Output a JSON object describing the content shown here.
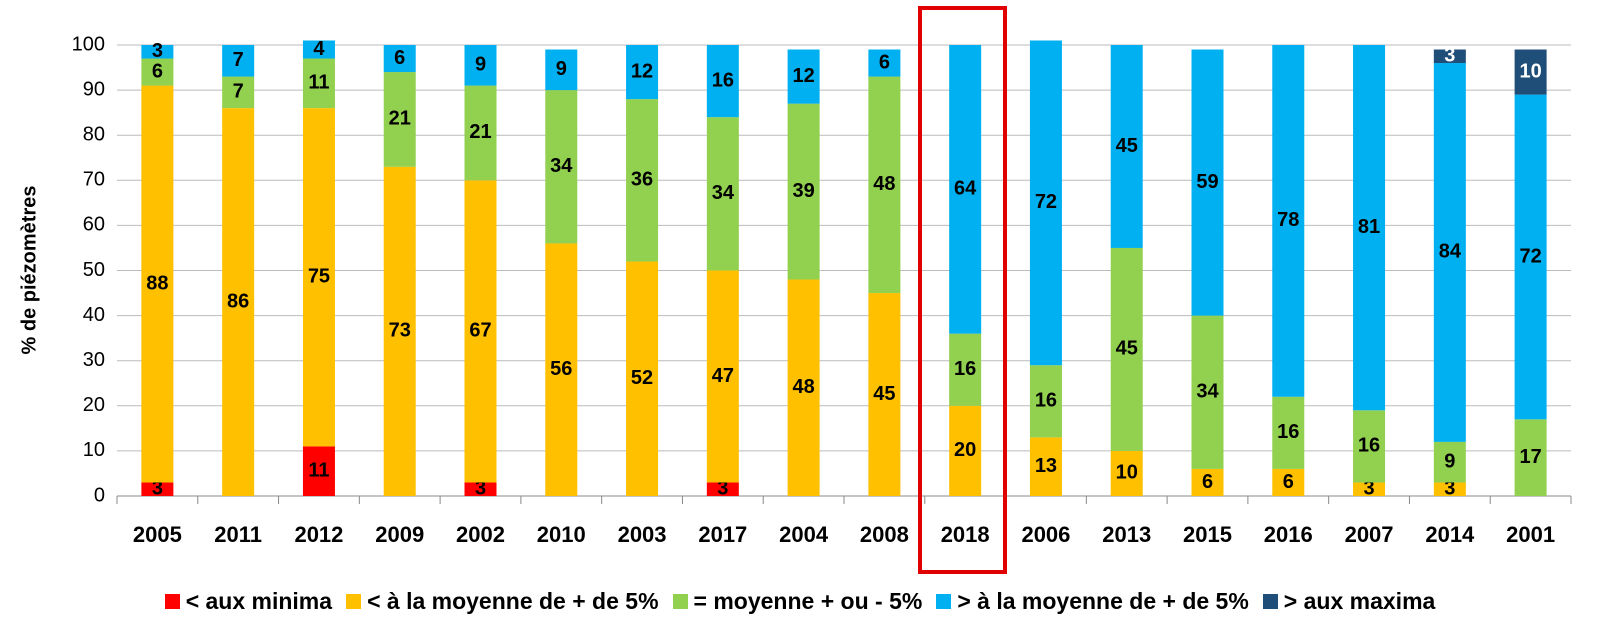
{
  "chart_data": {
    "type": "stacked_bar",
    "y_label": "% de piézomètres",
    "categories": [
      "2005",
      "2011",
      "2012",
      "2009",
      "2002",
      "2010",
      "2003",
      "2017",
      "2004",
      "2008",
      "2018",
      "2006",
      "2013",
      "2015",
      "2016",
      "2007",
      "2014",
      "2001"
    ],
    "series": [
      {
        "name": "< aux minima",
        "color": "#ff0000",
        "values": [
          3,
          null,
          11,
          null,
          3,
          null,
          null,
          3,
          null,
          null,
          null,
          null,
          null,
          null,
          null,
          null,
          null,
          null
        ]
      },
      {
        "name": "< à la moyenne de + de 5%",
        "color": "#ffc000",
        "values": [
          88,
          86,
          75,
          73,
          67,
          56,
          52,
          47,
          48,
          45,
          20,
          13,
          10,
          6,
          6,
          3,
          3,
          null
        ]
      },
      {
        "name": "= moyenne + ou - 5%",
        "color": "#92d050",
        "values": [
          6,
          7,
          11,
          21,
          21,
          34,
          36,
          34,
          39,
          48,
          16,
          16,
          45,
          34,
          16,
          16,
          9,
          17
        ]
      },
      {
        "name": "> à la moyenne de + de 5%",
        "color": "#00b0f0",
        "values": [
          3,
          7,
          4,
          6,
          9,
          9,
          12,
          16,
          12,
          6,
          64,
          72,
          45,
          59,
          78,
          81,
          84,
          72
        ]
      },
      {
        "name": "> aux maxima",
        "color": "#1f4e79",
        "values": [
          null,
          null,
          null,
          null,
          null,
          null,
          null,
          null,
          null,
          null,
          null,
          null,
          null,
          null,
          null,
          null,
          3,
          10
        ]
      }
    ],
    "ylim": [
      0,
      100
    ],
    "yticks": [
      0,
      10,
      20,
      30,
      40,
      50,
      60,
      70,
      80,
      90,
      100
    ],
    "grid": true
  }
}
